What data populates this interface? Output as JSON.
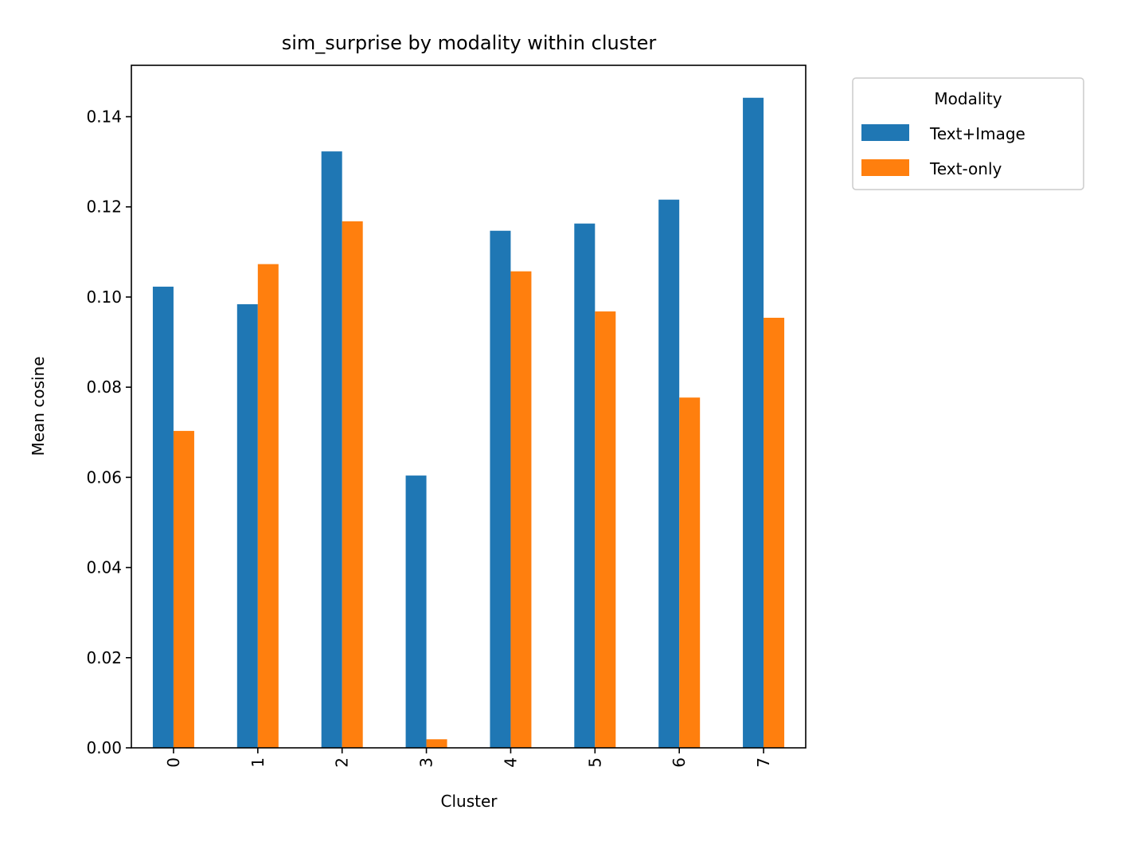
{
  "chart_data": {
    "type": "bar",
    "title": "sim_surprise by modality within cluster",
    "xlabel": "Cluster",
    "ylabel": "Mean cosine",
    "categories": [
      "0",
      "1",
      "2",
      "3",
      "4",
      "5",
      "6",
      "7"
    ],
    "series": [
      {
        "name": "Text+Image",
        "color": "#1f77b4",
        "values": [
          0.1023,
          0.0984,
          0.1323,
          0.0604,
          0.1147,
          0.1163,
          0.1216,
          0.1442
        ]
      },
      {
        "name": "Text-only",
        "color": "#ff7f0e",
        "values": [
          0.0703,
          0.1073,
          0.1168,
          0.0019,
          0.1057,
          0.0968,
          0.0777,
          0.0954
        ]
      }
    ],
    "ylim": [
      0,
      0.1514
    ],
    "yticks": [
      "0.00",
      "0.02",
      "0.04",
      "0.06",
      "0.08",
      "0.10",
      "0.12",
      "0.14"
    ],
    "legend": {
      "title": "Modality",
      "placement": "outside top-right"
    },
    "grid": false
  }
}
